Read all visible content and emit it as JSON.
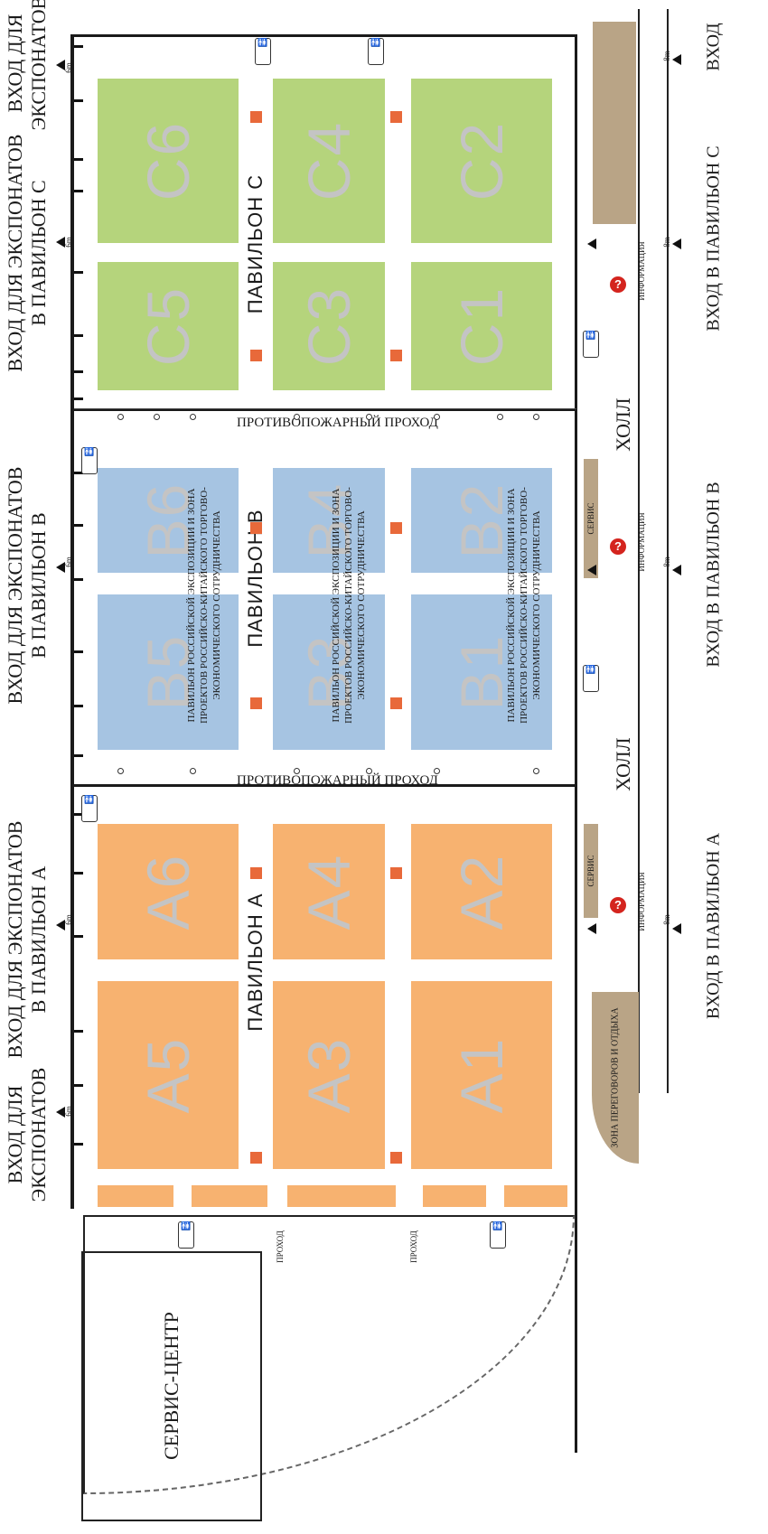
{
  "entrances": {
    "exhibits_top": [
      "ВХОД ДЛЯ",
      "ЭКСПОНАТОВ"
    ],
    "exhibits_a": [
      "ВХОД ДЛЯ ЭКСПОНАТОВ",
      "В ПАВИЛЬОН А"
    ],
    "exhibits_b": [
      "ВХОД ДЛЯ ЭКСПОНАТОВ",
      "В ПАВИЛЬОН В"
    ],
    "exhibits_c": [
      "ВХОД ДЛЯ ЭКСПОНАТОВ",
      "В ПАВИЛЬОН С"
    ],
    "exhibits_bottom": [
      "ВХОД ДЛЯ",
      "ЭКСПОНАТОВ"
    ],
    "visitor_a": "ВХОД В ПАВИЛЬОН А",
    "visitor_b": "ВХОД В ПАВИЛЬОН В",
    "visitor_c": "ВХОД В ПАВИЛЬОН С",
    "main": "ВХОД"
  },
  "pavilions": {
    "a": {
      "label": "ПАВИЛЬОН А",
      "stands": [
        "A1",
        "A2",
        "A3",
        "A4",
        "A5",
        "A6"
      ]
    },
    "b": {
      "label": "ПАВИЛЬОН В",
      "stands": [
        "B1",
        "B2",
        "B3",
        "B4",
        "B5",
        "B6"
      ]
    },
    "c": {
      "label": "ПАВИЛЬОН С",
      "stands": [
        "C1",
        "C2",
        "C3",
        "C4",
        "C5",
        "C6"
      ]
    }
  },
  "b_zone_text": [
    "ПАВИЛЬОН РОССИЙСКОЙ ЭКСПОЗИЦИИ И ЗОНА",
    "ПРОЕКТОВ РОССИЙСКО-КИТАЙСКОГО ТОРГОВО-",
    "ЭКОНОМИЧЕСКОГО СОТРУДНИЧЕСТВА"
  ],
  "fire_passage": "ПРОТИВОПОЖАРНЫЙ ПРОХОД",
  "hall": "ХОЛЛ",
  "service": "СЕРВИС",
  "info": "ИНФОРМАЦИЯ",
  "info_symbol": "?",
  "meeting_zone": "ЗОНА ПЕРЕГОВОРОВ И ОТДЫХА",
  "service_center": "СЕРВИС-ЦЕНТР",
  "passage": "ПРОХОД",
  "dim_6m": "6m",
  "dim_8m": "8m",
  "colors": {
    "pavilion_a": "#f7b270",
    "pavilion_b": "#a6c4e2",
    "pavilion_c": "#b5d47c",
    "pillar": "#e8693a",
    "info": "#d4241e",
    "service": "#b9a486"
  }
}
